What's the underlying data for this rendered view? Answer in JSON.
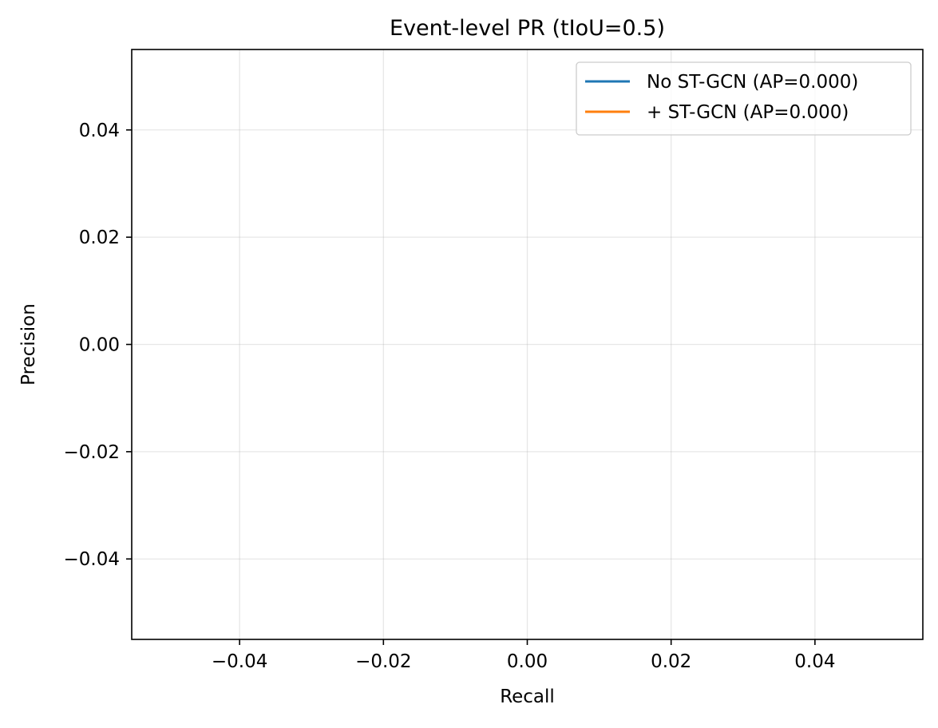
{
  "chart_data": {
    "type": "line",
    "title": "Event-level PR (tIoU=0.5)",
    "xlabel": "Recall",
    "ylabel": "Precision",
    "xlim": [
      -0.055,
      0.055
    ],
    "ylim": [
      -0.055,
      0.055
    ],
    "xticks": [
      -0.04,
      -0.02,
      0.0,
      0.02,
      0.04
    ],
    "yticks": [
      -0.04,
      -0.02,
      0.0,
      0.02,
      0.04
    ],
    "xtick_labels": [
      "−0.04",
      "−0.02",
      "0.00",
      "0.02",
      "0.04"
    ],
    "ytick_labels": [
      "−0.04",
      "−0.02",
      "0.00",
      "0.02",
      "0.04"
    ],
    "grid": true,
    "legend_position": "top-right",
    "series": [
      {
        "name": "No ST-GCN (AP=0.000)",
        "color": "#1f77b4",
        "x": [],
        "y": []
      },
      {
        "name": "+ ST-GCN (AP=0.000)",
        "color": "#ff7f0e",
        "x": [],
        "y": []
      }
    ]
  }
}
